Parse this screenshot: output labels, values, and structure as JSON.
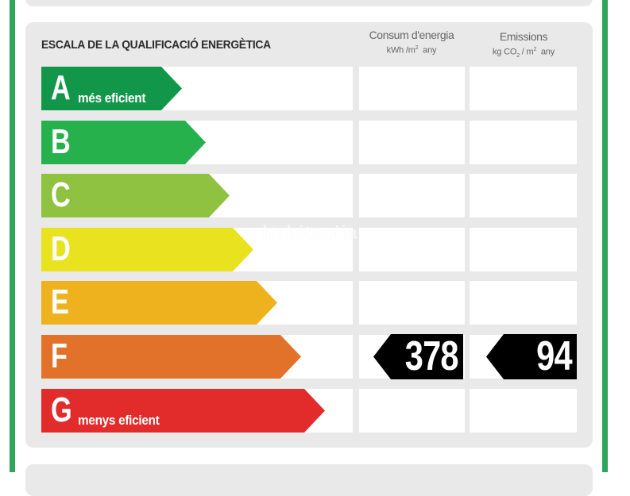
{
  "header": {
    "scale_title": "ESCALA DE LA QUALIFICACIÓ ENERGÈTICA",
    "energy_col": {
      "title": "Consum d'energia",
      "unit_pre": "kWh /m",
      "unit_sup": "2",
      "unit_post": "any"
    },
    "emissions_col": {
      "title": "Emissions",
      "unit_pre": "kg CO",
      "unit_sub": "2",
      "unit_mid": " / m",
      "unit_sup": "2",
      "unit_post": "any"
    }
  },
  "ratings": [
    {
      "letter": "A",
      "label": "més eficient",
      "color": "#12974a"
    },
    {
      "letter": "B",
      "label": "",
      "color": "#27b14d"
    },
    {
      "letter": "C",
      "label": "",
      "color": "#8fc240"
    },
    {
      "letter": "D",
      "label": "",
      "color": "#e8e21f"
    },
    {
      "letter": "E",
      "label": "",
      "color": "#efb21f"
    },
    {
      "letter": "F",
      "label": "",
      "color": "#e27129"
    },
    {
      "letter": "G",
      "label": "menys eficient",
      "color": "#e22b2b"
    }
  ],
  "current": {
    "rating": "F",
    "energy_value": "378",
    "emissions_value": "94"
  },
  "watermark": "habitaclia"
}
